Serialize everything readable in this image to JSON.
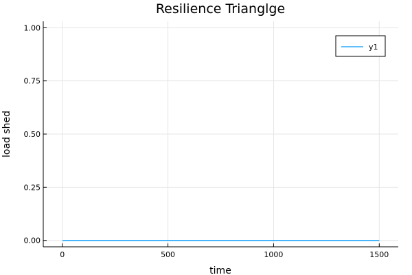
{
  "chart_data": {
    "type": "line",
    "title": "Resilience Trianglge",
    "xlabel": "time",
    "ylabel": "load shed",
    "xlim": [
      -90,
      1590
    ],
    "ylim": [
      -0.03,
      1.03
    ],
    "xticks": [
      0,
      500,
      1000,
      1500
    ],
    "xtick_labels": [
      "0",
      "500",
      "1000",
      "1500"
    ],
    "yticks": [
      0,
      0.25,
      0.5,
      0.75,
      1.0
    ],
    "ytick_labels": [
      "0.00",
      "0.25",
      "0.50",
      "0.75",
      "1.00"
    ],
    "grid": true,
    "legend_position": "top-right",
    "series": [
      {
        "name": "y1",
        "color": "#009af9",
        "x": [
          1,
          1500
        ],
        "y": [
          0,
          0
        ]
      }
    ]
  }
}
